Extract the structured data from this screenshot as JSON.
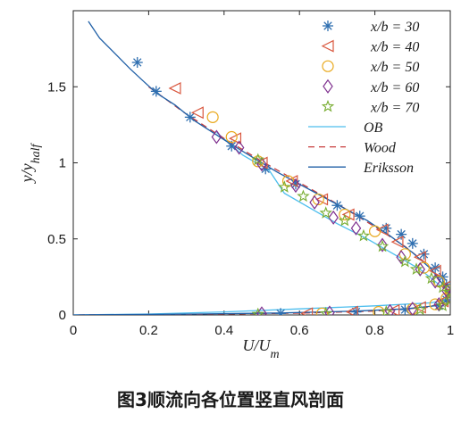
{
  "caption": "图3顺流向各位置竖直风剖面",
  "chart_data": {
    "type": "scatter",
    "xlabel": "U/U_m",
    "ylabel": "y/y_half",
    "xlim": [
      0,
      1
    ],
    "ylim": [
      0,
      2
    ],
    "xticks": [
      0,
      0.2,
      0.4,
      0.6,
      0.8,
      1
    ],
    "xtick_labels": [
      "0",
      "0.2",
      "0.4",
      "0.6",
      "0.8",
      "1"
    ],
    "yticks": [
      0,
      0.5,
      1,
      1.5
    ],
    "ytick_labels": [
      "0",
      "0.5",
      "1",
      "1.5"
    ],
    "grid": false,
    "legend_position": "top-right",
    "colors": {
      "s30": "#2f6fb0",
      "s40": "#d9573e",
      "s50": "#e9a91d",
      "s60": "#7e2f8e",
      "s70": "#77ac30",
      "ob": "#4dbeee",
      "wood": "#c83c3c",
      "eriksson": "#1f5fa6"
    },
    "series": [
      {
        "name": "x/b = 30",
        "marker": "asterisk",
        "color_key": "s30",
        "points": [
          [
            0.17,
            1.66
          ],
          [
            0.22,
            1.47
          ],
          [
            0.31,
            1.3
          ],
          [
            0.42,
            1.11
          ],
          [
            0.51,
            0.96
          ],
          [
            0.59,
            0.86
          ],
          [
            0.7,
            0.72
          ],
          [
            0.76,
            0.65
          ],
          [
            0.83,
            0.57
          ],
          [
            0.87,
            0.53
          ],
          [
            0.9,
            0.47
          ],
          [
            0.93,
            0.4
          ],
          [
            0.96,
            0.31
          ],
          [
            0.98,
            0.25
          ],
          [
            0.99,
            0.2
          ],
          [
            1.0,
            0.15
          ],
          [
            0.99,
            0.1
          ],
          [
            0.97,
            0.06
          ],
          [
            0.88,
            0.035
          ],
          [
            0.75,
            0.02
          ],
          [
            0.55,
            0.01
          ]
        ]
      },
      {
        "name": "x/b = 40",
        "marker": "triangle-left",
        "color_key": "s40",
        "points": [
          [
            0.27,
            1.49
          ],
          [
            0.33,
            1.33
          ],
          [
            0.43,
            1.16
          ],
          [
            0.5,
            1.0
          ],
          [
            0.58,
            0.88
          ],
          [
            0.66,
            0.76
          ],
          [
            0.73,
            0.66
          ],
          [
            0.82,
            0.56
          ],
          [
            0.86,
            0.48
          ],
          [
            0.92,
            0.38
          ],
          [
            0.96,
            0.29
          ],
          [
            0.99,
            0.19
          ],
          [
            1.0,
            0.14
          ],
          [
            0.98,
            0.09
          ],
          [
            0.92,
            0.05
          ],
          [
            0.85,
            0.03
          ],
          [
            0.74,
            0.02
          ],
          [
            0.62,
            0.01
          ]
        ]
      },
      {
        "name": "x/b = 50",
        "marker": "circle",
        "color_key": "s50",
        "points": [
          [
            0.37,
            1.3
          ],
          [
            0.42,
            1.17
          ],
          [
            0.49,
            1.01
          ],
          [
            0.57,
            0.88
          ],
          [
            0.65,
            0.76
          ],
          [
            0.72,
            0.66
          ],
          [
            0.8,
            0.55
          ],
          [
            0.88,
            0.4
          ],
          [
            0.93,
            0.31
          ],
          [
            0.97,
            0.22
          ],
          [
            1.0,
            0.16
          ],
          [
            0.99,
            0.11
          ],
          [
            0.96,
            0.07
          ],
          [
            0.9,
            0.04
          ],
          [
            0.81,
            0.02
          ],
          [
            0.66,
            0.01
          ]
        ]
      },
      {
        "name": "x/b = 60",
        "marker": "diamond",
        "color_key": "s60",
        "points": [
          [
            0.38,
            1.17
          ],
          [
            0.44,
            1.1
          ],
          [
            0.5,
            0.99
          ],
          [
            0.59,
            0.85
          ],
          [
            0.64,
            0.74
          ],
          [
            0.69,
            0.64
          ],
          [
            0.75,
            0.57
          ],
          [
            0.82,
            0.46
          ],
          [
            0.87,
            0.38
          ],
          [
            0.92,
            0.3
          ],
          [
            0.96,
            0.22
          ],
          [
            0.99,
            0.16
          ],
          [
            1.0,
            0.12
          ],
          [
            0.97,
            0.07
          ],
          [
            0.9,
            0.04
          ],
          [
            0.84,
            0.025
          ],
          [
            0.68,
            0.015
          ],
          [
            0.5,
            0.01
          ]
        ]
      },
      {
        "name": "x/b = 70",
        "marker": "star",
        "color_key": "s70",
        "points": [
          [
            0.49,
            1.02
          ],
          [
            0.56,
            0.84
          ],
          [
            0.61,
            0.78
          ],
          [
            0.67,
            0.67
          ],
          [
            0.72,
            0.62
          ],
          [
            0.77,
            0.52
          ],
          [
            0.82,
            0.45
          ],
          [
            0.88,
            0.35
          ],
          [
            0.91,
            0.3
          ],
          [
            0.95,
            0.24
          ],
          [
            0.98,
            0.18
          ],
          [
            1.0,
            0.15
          ],
          [
            1.0,
            0.1
          ],
          [
            0.98,
            0.06
          ],
          [
            0.92,
            0.035
          ],
          [
            0.83,
            0.02
          ],
          [
            0.67,
            0.01
          ],
          [
            0.49,
            0.005
          ]
        ]
      },
      {
        "name": "OB",
        "marker": "line",
        "color_key": "ob",
        "dash": "",
        "points": [
          [
            0.38,
            1.2
          ],
          [
            0.45,
            1.05
          ],
          [
            0.52,
            0.95
          ],
          [
            0.56,
            0.8
          ],
          [
            0.63,
            0.7
          ],
          [
            0.7,
            0.6
          ],
          [
            0.78,
            0.5
          ],
          [
            0.85,
            0.4
          ],
          [
            0.92,
            0.3
          ],
          [
            0.97,
            0.2
          ],
          [
            1.0,
            0.15
          ],
          [
            0.99,
            0.1
          ],
          [
            0.95,
            0.08
          ],
          [
            0.8,
            0.06
          ],
          [
            0.6,
            0.04
          ],
          [
            0.4,
            0.02
          ],
          [
            0.2,
            0.006
          ],
          [
            0.0,
            0.0
          ]
        ]
      },
      {
        "name": "Wood",
        "marker": "line",
        "color_key": "wood",
        "dash": "7 5",
        "points": [
          [
            0.2,
            1.5
          ],
          [
            0.3,
            1.32
          ],
          [
            0.4,
            1.16
          ],
          [
            0.5,
            1.01
          ],
          [
            0.6,
            0.87
          ],
          [
            0.7,
            0.73
          ],
          [
            0.8,
            0.58
          ],
          [
            0.88,
            0.45
          ],
          [
            0.94,
            0.33
          ],
          [
            0.98,
            0.22
          ],
          [
            1.0,
            0.14
          ],
          [
            0.99,
            0.09
          ],
          [
            0.94,
            0.05
          ],
          [
            0.8,
            0.025
          ],
          [
            0.6,
            0.012
          ],
          [
            0.4,
            0.006
          ],
          [
            0.2,
            0.002
          ],
          [
            0.0,
            0.0
          ]
        ]
      },
      {
        "name": "Eriksson",
        "marker": "line",
        "color_key": "eriksson",
        "dash": "",
        "points": [
          [
            0.04,
            1.93
          ],
          [
            0.07,
            1.82
          ],
          [
            0.11,
            1.72
          ],
          [
            0.15,
            1.62
          ],
          [
            0.18,
            1.55
          ],
          [
            0.22,
            1.46
          ],
          [
            0.27,
            1.38
          ],
          [
            0.32,
            1.28
          ],
          [
            0.37,
            1.2
          ],
          [
            0.42,
            1.12
          ],
          [
            0.48,
            1.03
          ],
          [
            0.54,
            0.94
          ],
          [
            0.6,
            0.86
          ],
          [
            0.66,
            0.78
          ],
          [
            0.72,
            0.7
          ],
          [
            0.78,
            0.62
          ],
          [
            0.84,
            0.52
          ],
          [
            0.9,
            0.41
          ],
          [
            0.95,
            0.3
          ],
          [
            0.98,
            0.2
          ],
          [
            0.995,
            0.14
          ],
          [
            0.99,
            0.09
          ],
          [
            0.96,
            0.06
          ],
          [
            0.88,
            0.04
          ],
          [
            0.75,
            0.025
          ],
          [
            0.55,
            0.013
          ],
          [
            0.3,
            0.005
          ],
          [
            0.0,
            0.0
          ]
        ]
      }
    ]
  }
}
